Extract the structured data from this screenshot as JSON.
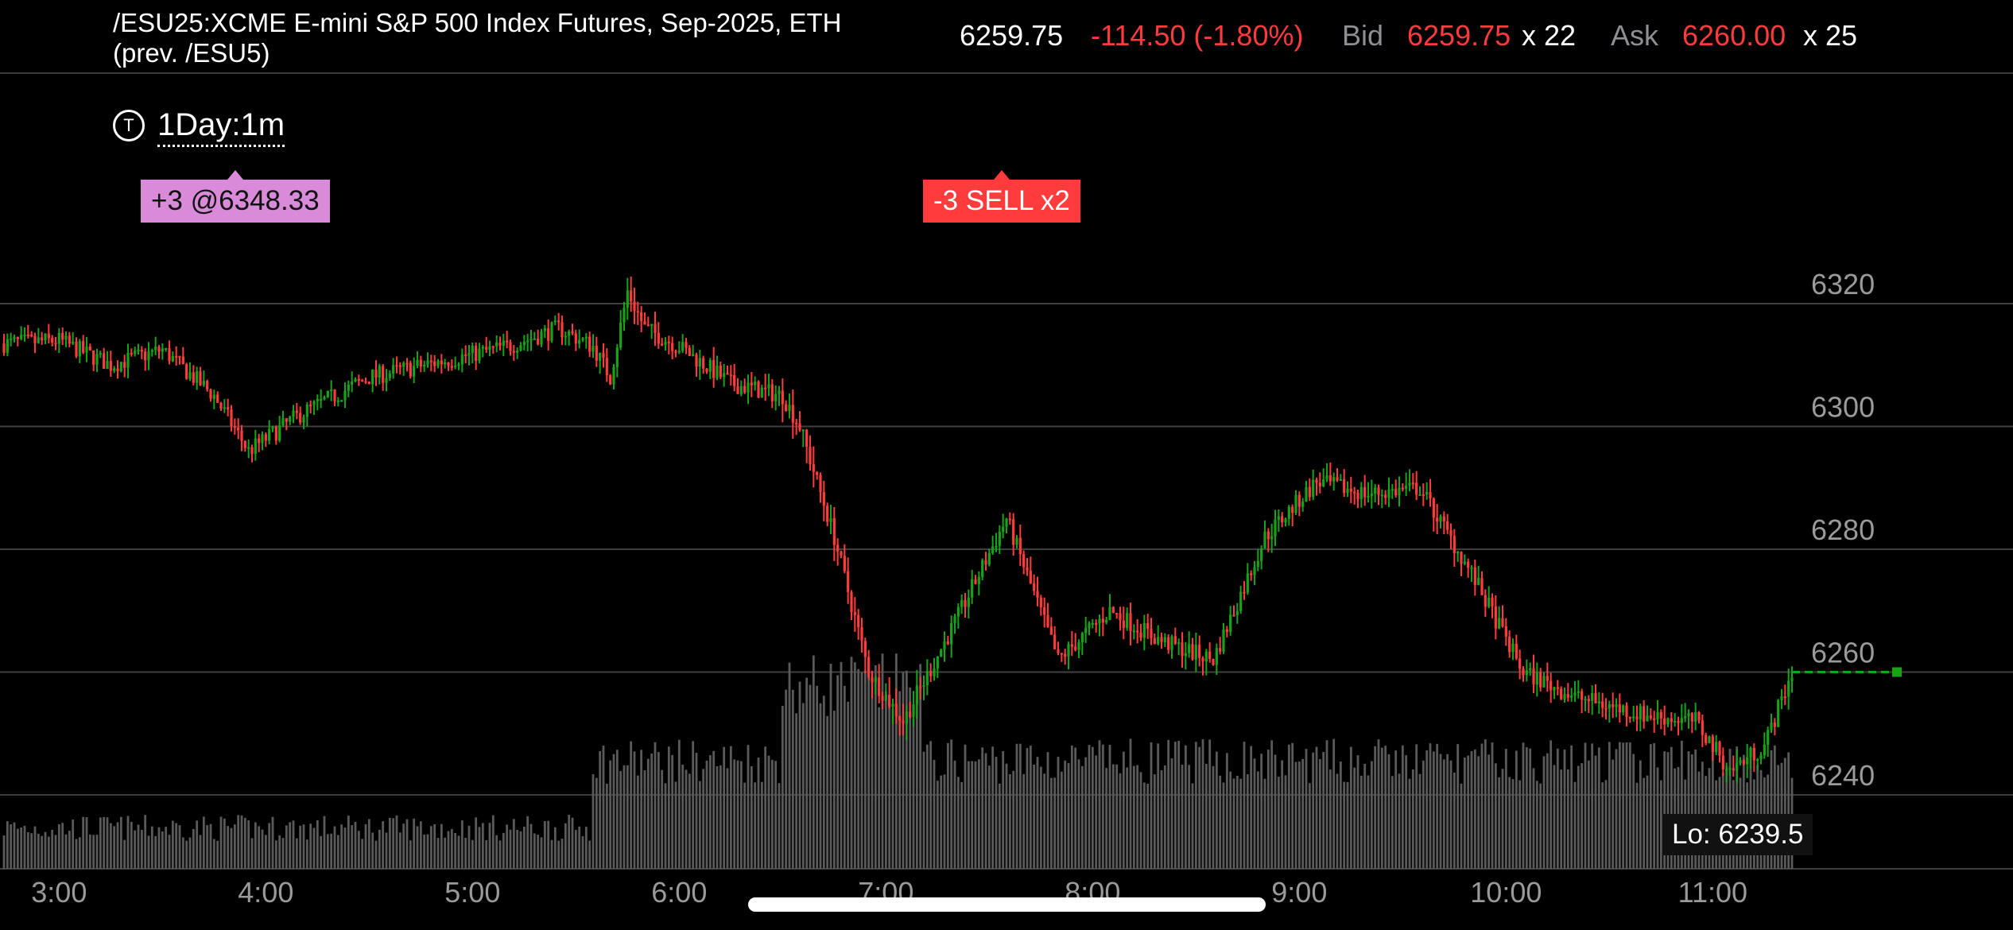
{
  "header": {
    "title_line1": "/ESU25:XCME E-mini S&P 500 Index Futures, Sep-2025, ETH",
    "title_line2": "(prev. /ESU5)",
    "last": "6259.75",
    "change": "-114.50 (-1.80%)",
    "bid_label": "Bid",
    "bid": "6259.75",
    "bid_size": "x 22",
    "ask_label": "Ask",
    "ask": "6260.00",
    "ask_size": "x 25"
  },
  "timeframe": {
    "icon": "T",
    "label": "1Day:1m"
  },
  "tags": {
    "buy": "+3 @6348.33",
    "sell": "-3 SELL x2"
  },
  "low_label": "Lo: 6239.5",
  "colors": {
    "up": "#17a317",
    "down": "#ff3b3b",
    "volume": "#5a5a5a",
    "grid": "#3f3f3f",
    "axis_text": "#9a9a9a"
  },
  "chart_data": {
    "type": "candlestick",
    "y_ticks": [
      "6320",
      "6300",
      "6280",
      "6260",
      "6240"
    ],
    "x_ticks": [
      "3:00",
      "4:00",
      "5:00",
      "6:00",
      "7:00",
      "8:00",
      "9:00",
      "10:00",
      "11:00"
    ],
    "ylim": [
      6229,
      6333
    ],
    "last_price": 6260,
    "low": 6239.5,
    "price_path": [
      [
        "2:44",
        6313.5
      ],
      [
        "3:00",
        6314.0
      ],
      [
        "3:15",
        6310.0
      ],
      [
        "3:30",
        6312.5
      ],
      [
        "3:45",
        6305.0
      ],
      [
        "3:55",
        6296.0
      ],
      [
        "4:10",
        6302.0
      ],
      [
        "4:30",
        6308.0
      ],
      [
        "4:50",
        6310.5
      ],
      [
        "5:10",
        6313.0
      ],
      [
        "5:25",
        6316.0
      ],
      [
        "5:35",
        6313.0
      ],
      [
        "5:40",
        6308.0
      ],
      [
        "5:45",
        6322.0
      ],
      [
        "5:50",
        6316.0
      ],
      [
        "6:00",
        6313.0
      ],
      [
        "6:15",
        6307.0
      ],
      [
        "6:30",
        6305.0
      ],
      [
        "6:35",
        6300.0
      ],
      [
        "6:45",
        6282.0
      ],
      [
        "6:55",
        6260.0
      ],
      [
        "7:05",
        6252.0
      ],
      [
        "7:20",
        6268.0
      ],
      [
        "7:35",
        6285.0
      ],
      [
        "7:50",
        6262.0
      ],
      [
        "8:05",
        6270.0
      ],
      [
        "8:20",
        6265.0
      ],
      [
        "8:35",
        6262.0
      ],
      [
        "8:50",
        6282.0
      ],
      [
        "9:05",
        6291.0
      ],
      [
        "9:20",
        6289.0
      ],
      [
        "9:35",
        6290.0
      ],
      [
        "9:50",
        6276.0
      ],
      [
        "10:05",
        6260.0
      ],
      [
        "10:20",
        6256.0
      ],
      [
        "10:40",
        6253.0
      ],
      [
        "10:55",
        6252.0
      ],
      [
        "11:05",
        6244.0
      ],
      [
        "11:15",
        6248.0
      ],
      [
        "11:23",
        6260.0
      ]
    ],
    "volume_scale": "relative"
  }
}
